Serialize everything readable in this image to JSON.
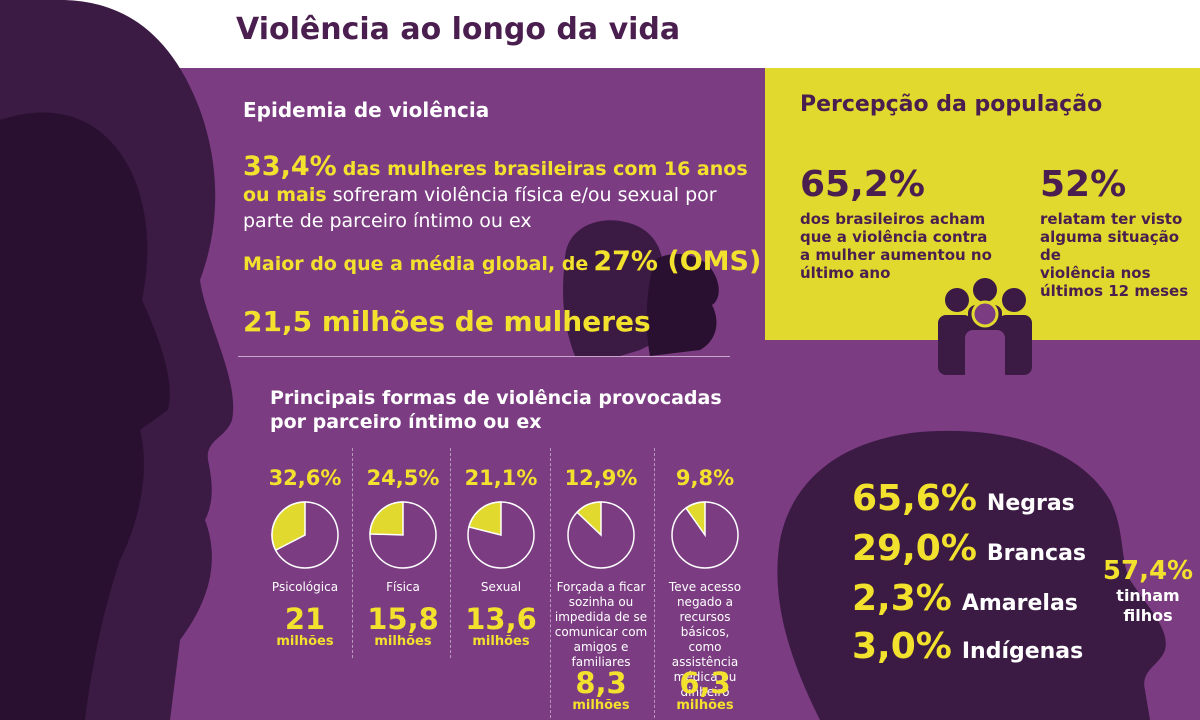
{
  "title": "Violência ao longo da vida",
  "epidemia": {
    "heading": "Epidemia de violência",
    "stat_pct": "33,4%",
    "stat_lead": "das mulheres brasileiras com 16 anos",
    "stat_lead2": "ou mais",
    "stat_rest": "sofreram violência física e/ou sexual por",
    "stat_rest2": "parte de parceiro íntimo ou ex",
    "global_text": "Maior do que a média global, de",
    "global_pct": "27% (OMS)",
    "millions": "21,5 milhões de mulheres"
  },
  "formas": {
    "heading_line1": "Principais formas de violência provocadas",
    "heading_line2": "por parceiro íntimo ou ex",
    "items": [
      {
        "pct": "32,6%",
        "value": 32.6,
        "label": [
          "Psicológica"
        ],
        "count": "21",
        "unit": "milhões"
      },
      {
        "pct": "24,5%",
        "value": 24.5,
        "label": [
          "Física"
        ],
        "count": "15,8",
        "unit": "milhões"
      },
      {
        "pct": "21,1%",
        "value": 21.1,
        "label": [
          "Sexual"
        ],
        "count": "13,6",
        "unit": "milhões"
      },
      {
        "pct": "12,9%",
        "value": 12.9,
        "label": [
          "Forçada a ficar",
          "sozinha ou",
          "impedida de se",
          "comunicar com",
          "amigos e",
          "familiares"
        ],
        "count": "8,3",
        "unit": "milhões"
      },
      {
        "pct": "9,8%",
        "value": 9.8,
        "label": [
          "Teve acesso",
          "negado a",
          "recursos básicos,",
          "como assistência",
          "médica ou",
          "dinheiro"
        ],
        "count": "6,3",
        "unit": "milhões"
      }
    ]
  },
  "percepcao": {
    "heading": "Percepção da população",
    "a_pct": "65,2%",
    "a_text": [
      "dos brasileiros acham",
      "que a violência contra",
      "a mulher aumentou no",
      "último ano"
    ],
    "b_pct": "52%",
    "b_text": [
      "relatam ter visto",
      "alguma situação de",
      "violência nos",
      "últimos 12 meses"
    ]
  },
  "raca": [
    {
      "pct": "65,6%",
      "label": "Negras"
    },
    {
      "pct": "29,0%",
      "label": "Brancas"
    },
    {
      "pct": "2,3%",
      "label": "Amarelas"
    },
    {
      "pct": "3,0%",
      "label": "Indígenas"
    }
  ],
  "filhos": {
    "pct": "57,4%",
    "line1": "tinham",
    "line2": "filhos"
  },
  "colors": {
    "purple": "#7b3c82",
    "dark_purple": "#3b1a44",
    "yellow": "#e2d92e",
    "accent_yellow": "#f2e12d",
    "title": "#4a1f4f"
  }
}
